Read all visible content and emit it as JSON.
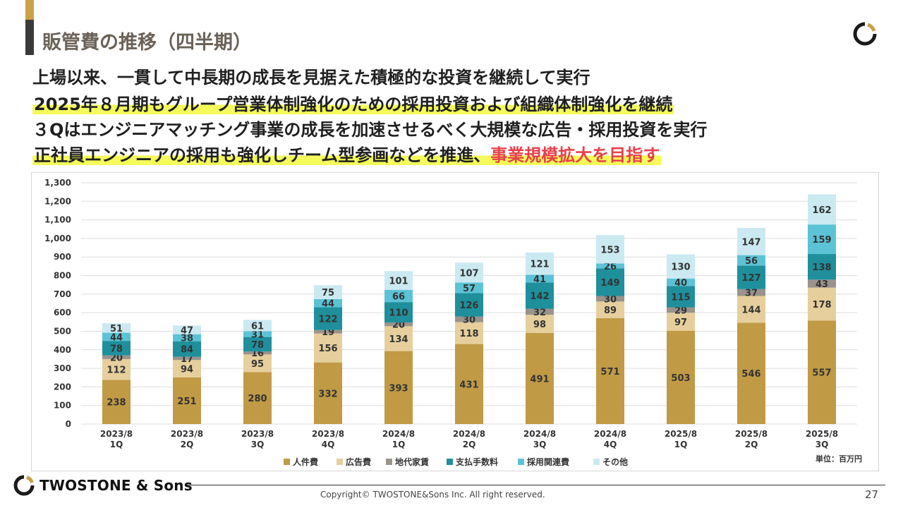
{
  "header": {
    "title": "販管費の推移（四半期）"
  },
  "headlines": [
    {
      "text": "上場以来、一貫して中長期の成長を見据えた積極的な投資を継続して実行",
      "highlight": false,
      "accent": ""
    },
    {
      "text": "2025年８月期もグループ営業体制強化のための採用投資および組織体制強化を継続",
      "highlight": true,
      "accent": ""
    },
    {
      "text": "３Qはエンジニアマッチング事業の成長を加速させるべく大規模な広告・採用投資を実行",
      "highlight": false,
      "accent": ""
    },
    {
      "text": "正社員エンジニアの採用も強化しチーム型参画などを推進、",
      "highlight": true,
      "accent": "事業規模拡大を目指す"
    }
  ],
  "colors": {
    "personnel": "#c09a45",
    "advertising": "#e6cf9c",
    "rent": "#9a938c",
    "fees": "#1f8f9c",
    "recruiting": "#5cc3d6",
    "other": "#cbe9f1",
    "highlight": "#f4fb5a",
    "accent_red": "#e8404a",
    "brand_gold": "#c9a24a"
  },
  "chart_data": {
    "type": "bar",
    "stacked": true,
    "title": "",
    "xlabel": "",
    "ylabel": "",
    "unit": "単位：百万円",
    "ylim": [
      0,
      1300
    ],
    "yticks": [
      "0",
      "100",
      "200",
      "300",
      "400",
      "500",
      "600",
      "700",
      "800",
      "900",
      "1,000",
      "1,100",
      "1,200",
      "1,300"
    ],
    "grid": true,
    "legend_position": "bottom",
    "categories": [
      [
        "2023/8",
        "1Q"
      ],
      [
        "2023/8",
        "2Q"
      ],
      [
        "2023/8",
        "3Q"
      ],
      [
        "2023/8",
        "4Q"
      ],
      [
        "2024/8",
        "1Q"
      ],
      [
        "2024/8",
        "2Q"
      ],
      [
        "2024/8",
        "3Q"
      ],
      [
        "2024/8",
        "4Q"
      ],
      [
        "2025/8",
        "1Q"
      ],
      [
        "2025/8",
        "2Q"
      ],
      [
        "2025/8",
        "3Q"
      ]
    ],
    "series": [
      {
        "name": "人件費",
        "color": "#c09a45",
        "values": [
          238,
          251,
          280,
          332,
          393,
          431,
          491,
          571,
          503,
          546,
          557
        ]
      },
      {
        "name": "広告費",
        "color": "#e6cf9c",
        "values": [
          112,
          94,
          95,
          156,
          134,
          118,
          98,
          89,
          97,
          144,
          178
        ]
      },
      {
        "name": "地代家賃",
        "color": "#9a938c",
        "values": [
          20,
          17,
          16,
          19,
          20,
          30,
          32,
          30,
          29,
          37,
          43
        ]
      },
      {
        "name": "支払手数料",
        "color": "#1f8f9c",
        "values": [
          78,
          84,
          78,
          122,
          110,
          126,
          142,
          149,
          115,
          127,
          138
        ]
      },
      {
        "name": "採用関連費",
        "color": "#5cc3d6",
        "values": [
          44,
          38,
          31,
          44,
          66,
          57,
          41,
          26,
          40,
          56,
          159
        ]
      },
      {
        "name": "その他",
        "color": "#cbe9f1",
        "values": [
          51,
          47,
          61,
          75,
          101,
          107,
          121,
          153,
          130,
          147,
          162
        ]
      }
    ]
  },
  "footer": {
    "brand": "TWOSTONE & Sons",
    "copyright": "Copyright© TWOSTONE&Sons Inc. All right reserved.",
    "page_number": "27"
  }
}
